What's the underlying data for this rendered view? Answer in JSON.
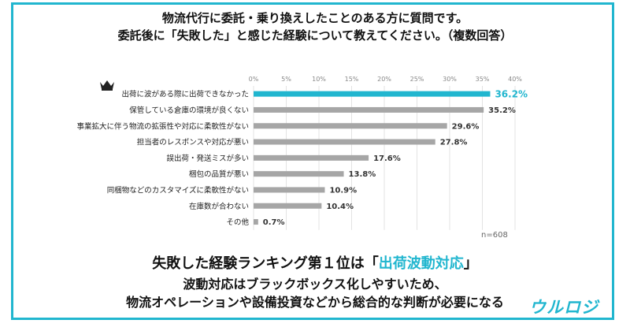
{
  "title_line1": "物流代行に委託・乗り換えしたことのある方に質問です。",
  "title_line2": "委託後に「失敗した」と感じた経験について教えてください。（複数回答）",
  "sample_size": "n=608",
  "summary": {
    "line1_pre": "失敗した経験ランキング第１位は「",
    "line1_highlight": "出荷波動対応",
    "line1_post": "」",
    "line2": "波動対応はブラックボックス化しやすいため、",
    "line3": "物流オペレーションや設備投資などから総合的な判断が必要になる"
  },
  "logo_text": "ウルロジ",
  "colors": {
    "accent": "#21b6cf",
    "bar": "#a6a6a6",
    "frame": "#21b6cf"
  },
  "icons": {
    "top_rank": "crown-icon"
  },
  "chart_data": {
    "type": "bar",
    "orientation": "horizontal",
    "categories": [
      "出荷に波がある際に出荷できなかった",
      "保管している倉庫の環境が良くない",
      "事業拡大に伴う物流の拡張性や対応に柔軟性がない",
      "担当者のレスポンスや対応が悪い",
      "誤出荷・発送ミスが多い",
      "梱包の品質が悪い",
      "同梱物などのカスタマイズに柔軟性がない",
      "在庫数が合わない",
      "その他"
    ],
    "values": [
      36.2,
      35.2,
      29.6,
      27.8,
      17.6,
      13.8,
      10.9,
      10.4,
      0.7
    ],
    "value_labels": [
      "36.2%",
      "35.2%",
      "29.6%",
      "27.8%",
      "17.6%",
      "13.8%",
      "10.9%",
      "10.4%",
      "0.7%"
    ],
    "xlim": [
      0,
      40
    ],
    "ticks": [
      0,
      5,
      10,
      15,
      20,
      25,
      30,
      35,
      40
    ],
    "tick_labels": [
      "0%",
      "5%",
      "10%",
      "15%",
      "20%",
      "25%",
      "30%",
      "35%",
      "40%"
    ],
    "grid": true,
    "highlight_index": 0
  }
}
